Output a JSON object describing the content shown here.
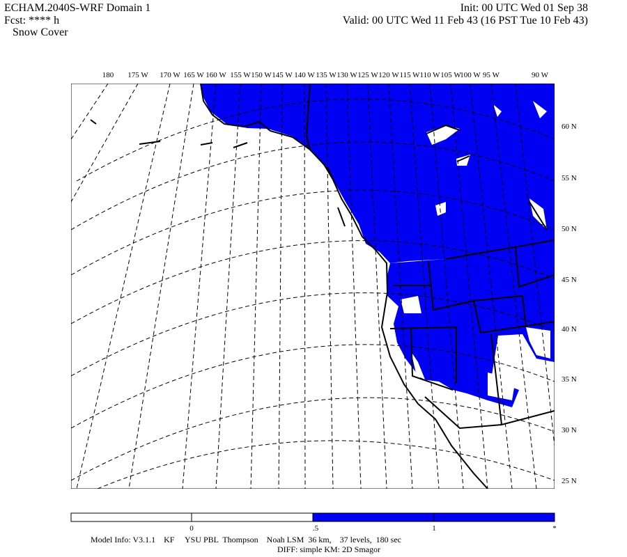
{
  "header": {
    "title": "ECHAM.2040S-WRF Domain 1",
    "forecast": "Fcst: **** h",
    "field": "Snow Cover",
    "init": "Init: 00 UTC Wed 01 Sep 38",
    "valid": "Valid: 00 UTC Wed 11 Feb 43 (16 PST Tue 10 Feb 43)"
  },
  "map": {
    "longitude_labels": [
      "180",
      "175 W",
      "170 W",
      "165 W",
      "160 W",
      "155 W",
      "150 W",
      "145 W",
      "140 W",
      "135 W",
      "130 W",
      "125 W",
      "120 W",
      "115 W",
      "110 W",
      "105 W",
      "100 W",
      "95 W",
      "90 W"
    ],
    "latitude_labels": [
      "60 N",
      "55 N",
      "50 N",
      "45 N",
      "40 N",
      "35 N",
      "30 N",
      "25 N"
    ]
  },
  "colorbar": {
    "labels": [
      "0",
      ".5",
      "1",
      "*"
    ]
  },
  "footer": {
    "model_info": "Model Info: V3.1.1    KF     YSU PBL  Thompson    Noah LSM  36 km,    37 levels,  180 sec",
    "diff": "DIFF: simple KM: 2D Smagor"
  }
}
